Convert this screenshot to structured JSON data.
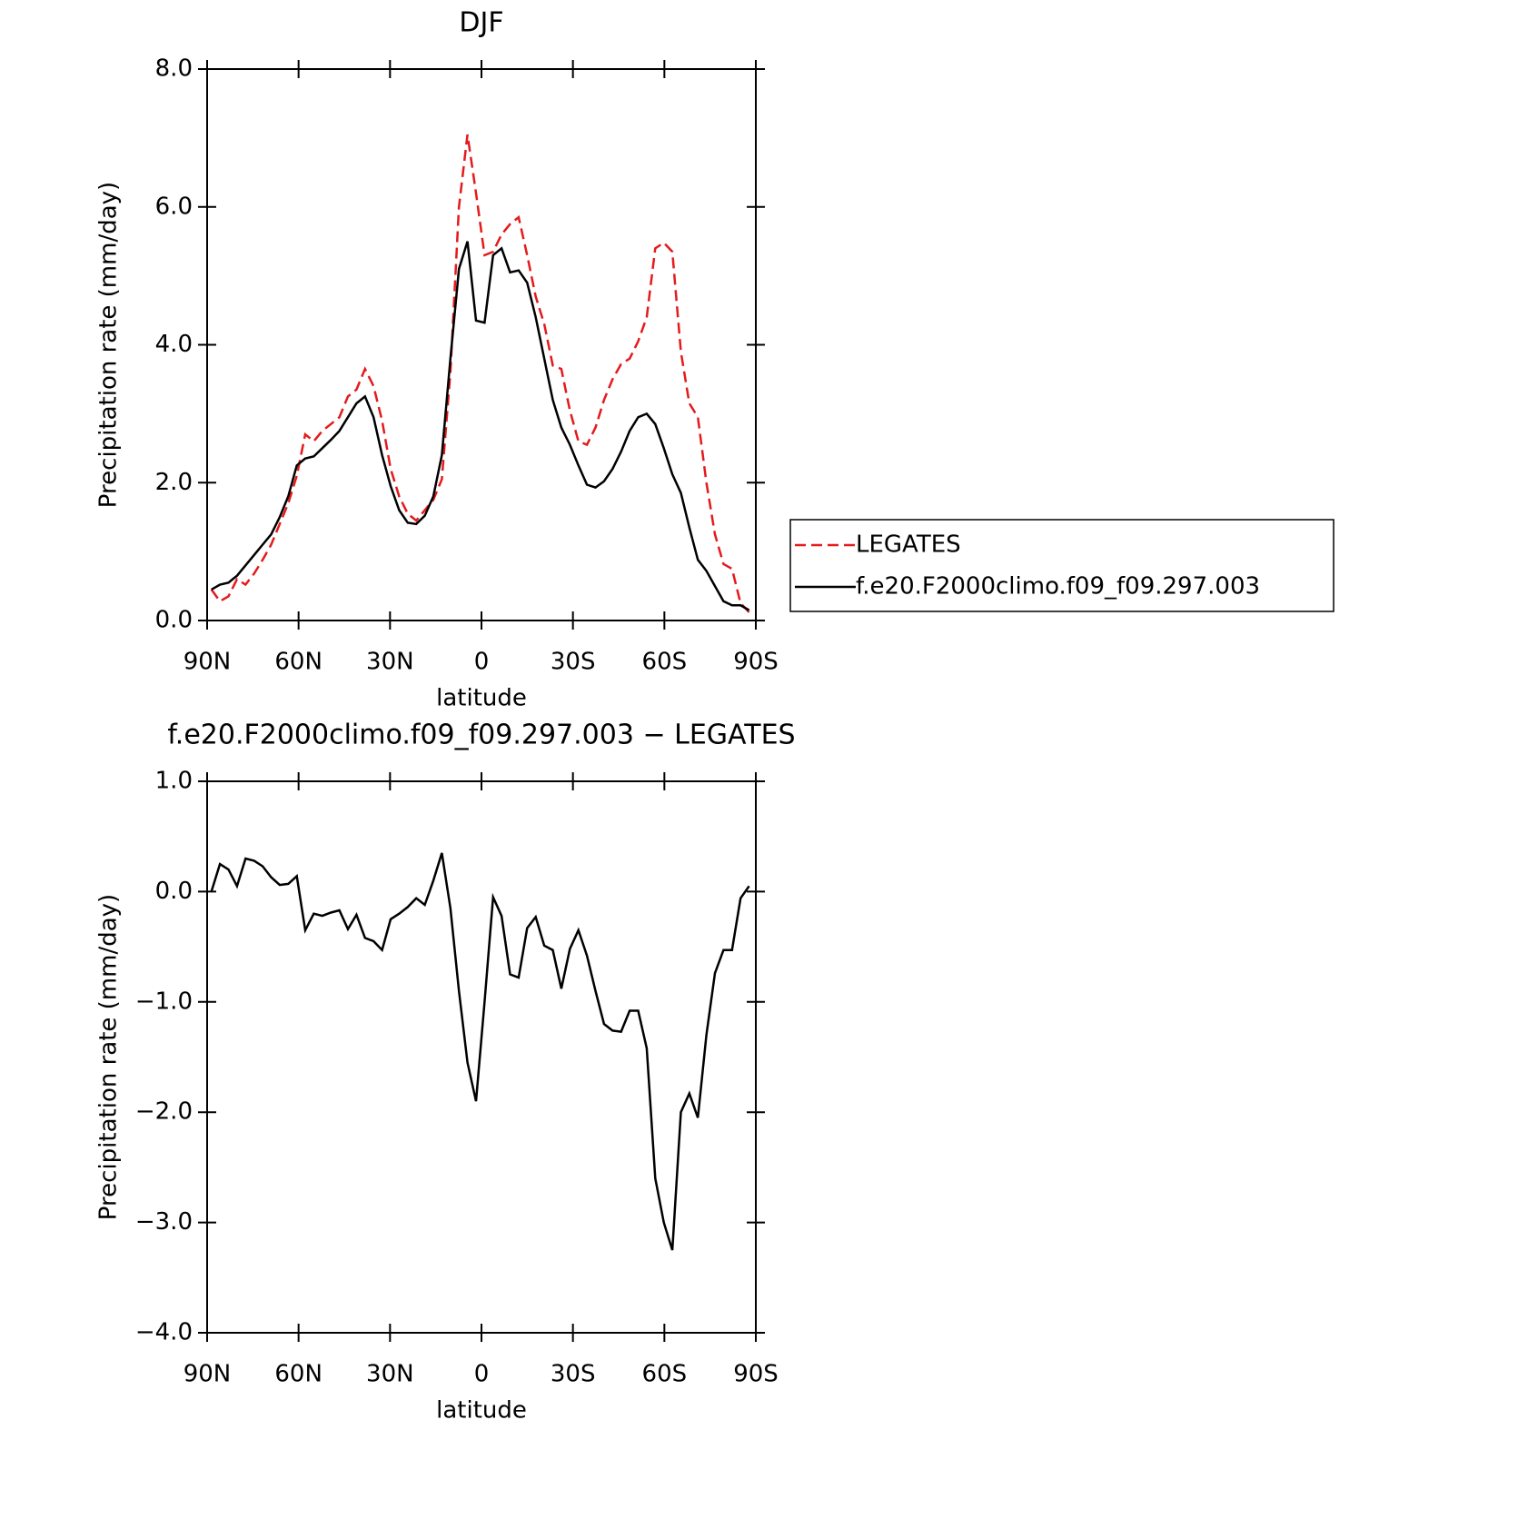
{
  "chart_data": [
    {
      "type": "line",
      "title": "DJF",
      "xlabel": "latitude",
      "ylabel": "Precipitation rate (mm/day)",
      "x": [
        88.6,
        85.8,
        83.0,
        80.2,
        77.4,
        74.6,
        71.8,
        69.0,
        66.2,
        63.4,
        60.6,
        57.8,
        55.0,
        52.2,
        49.4,
        46.6,
        43.8,
        41.0,
        38.2,
        35.4,
        32.6,
        29.8,
        27.0,
        24.2,
        21.4,
        18.6,
        15.8,
        13.0,
        10.2,
        7.4,
        4.6,
        1.8,
        -1.0,
        -3.8,
        -6.6,
        -9.4,
        -12.2,
        -15.0,
        -17.8,
        -20.6,
        -23.4,
        -26.2,
        -29.0,
        -31.8,
        -34.6,
        -37.4,
        -40.2,
        -43.0,
        -45.8,
        -48.6,
        -51.4,
        -54.2,
        -57.0,
        -59.8,
        -62.6,
        -65.4,
        -68.2,
        -71.0,
        -73.8,
        -76.6,
        -79.4,
        -82.2,
        -85.0,
        -87.8
      ],
      "series": [
        {
          "name": "LEGATES",
          "color": "#e41a1c",
          "line_style": "dashed",
          "values": [
            0.45,
            0.28,
            0.35,
            0.6,
            0.52,
            0.68,
            0.88,
            1.1,
            1.4,
            1.7,
            2.1,
            2.7,
            2.6,
            2.75,
            2.85,
            2.95,
            3.25,
            3.35,
            3.65,
            3.4,
            2.9,
            2.2,
            1.8,
            1.55,
            1.45,
            1.6,
            1.75,
            2.05,
            3.6,
            6.0,
            7.05,
            6.2,
            5.3,
            5.35,
            5.6,
            5.75,
            5.85,
            5.3,
            4.7,
            4.3,
            3.7,
            3.65,
            3.05,
            2.6,
            2.55,
            2.8,
            3.2,
            3.5,
            3.72,
            3.8,
            4.05,
            4.4,
            5.4,
            5.48,
            5.35,
            3.9,
            3.15,
            2.95,
            2.0,
            1.25,
            0.82,
            0.75,
            0.25,
            0.12
          ]
        },
        {
          "name": "f.e20.F2000climo.f09_f09.297.003",
          "color": "#000000",
          "line_style": "solid",
          "values": [
            0.45,
            0.52,
            0.55,
            0.65,
            0.8,
            0.95,
            1.1,
            1.25,
            1.5,
            1.8,
            2.25,
            2.35,
            2.38,
            2.5,
            2.62,
            2.75,
            2.95,
            3.15,
            3.25,
            2.95,
            2.4,
            1.95,
            1.6,
            1.42,
            1.4,
            1.52,
            1.8,
            2.4,
            3.8,
            5.1,
            5.5,
            4.35,
            4.32,
            5.3,
            5.4,
            5.05,
            5.08,
            4.9,
            4.4,
            3.8,
            3.2,
            2.8,
            2.55,
            2.25,
            1.97,
            1.93,
            2.02,
            2.2,
            2.45,
            2.75,
            2.95,
            3.0,
            2.85,
            2.5,
            2.12,
            1.85,
            1.35,
            0.88,
            0.72,
            0.5,
            0.28,
            0.22,
            0.22,
            0.15
          ]
        }
      ],
      "xlim": [
        90,
        -90
      ],
      "xticks": [
        {
          "value": 90,
          "label": "90N"
        },
        {
          "value": 60,
          "label": "60N"
        },
        {
          "value": 30,
          "label": "30N"
        },
        0,
        {
          "value": -30,
          "label": "30S"
        },
        {
          "value": -60,
          "label": "60S"
        },
        {
          "value": -90,
          "label": "90S"
        }
      ],
      "ylim": [
        0,
        8
      ],
      "yticks": [
        {
          "value": 0,
          "label": "0.0"
        },
        {
          "value": 2,
          "label": "2.0"
        },
        {
          "value": 4,
          "label": "4.0"
        },
        {
          "value": 6,
          "label": "6.0"
        },
        {
          "value": 8,
          "label": "8.0"
        }
      ],
      "legend": "right"
    },
    {
      "type": "line",
      "title": "f.e20.F2000climo.f09_f09.297.003 − LEGATES",
      "xlabel": "latitude",
      "ylabel": "Precipitation rate (mm/day)",
      "x": [
        88.6,
        85.8,
        83.0,
        80.2,
        77.4,
        74.6,
        71.8,
        69.0,
        66.2,
        63.4,
        60.6,
        57.8,
        55.0,
        52.2,
        49.4,
        46.6,
        43.8,
        41.0,
        38.2,
        35.4,
        32.6,
        29.8,
        27.0,
        24.2,
        21.4,
        18.6,
        15.8,
        13.0,
        10.2,
        7.4,
        4.6,
        1.8,
        -1.0,
        -3.8,
        -6.6,
        -9.4,
        -12.2,
        -15.0,
        -17.8,
        -20.6,
        -23.4,
        -26.2,
        -29.0,
        -31.8,
        -34.6,
        -37.4,
        -40.2,
        -43.0,
        -45.8,
        -48.6,
        -51.4,
        -54.2,
        -57.0,
        -59.8,
        -62.6,
        -65.4,
        -68.2,
        -71.0,
        -73.8,
        -76.6,
        -79.4,
        -82.2,
        -85.0,
        -87.8
      ],
      "values": [
        0.0,
        0.25,
        0.2,
        0.05,
        0.3,
        0.28,
        0.23,
        0.13,
        0.06,
        0.07,
        0.14,
        -0.35,
        -0.2,
        -0.22,
        -0.19,
        -0.17,
        -0.34,
        -0.21,
        -0.42,
        -0.45,
        -0.53,
        -0.25,
        -0.2,
        -0.14,
        -0.06,
        -0.12,
        0.1,
        0.35,
        -0.15,
        -0.9,
        -1.55,
        -1.9,
        -1.0,
        -0.05,
        -0.22,
        -0.75,
        -0.78,
        -0.33,
        -0.23,
        -0.49,
        -0.53,
        -0.88,
        -0.52,
        -0.35,
        -0.58,
        -0.9,
        -1.2,
        -1.26,
        -1.27,
        -1.08,
        -1.08,
        -1.42,
        -2.6,
        -3.0,
        -3.25,
        -2.0,
        -1.83,
        -2.05,
        -1.3,
        -0.74,
        -0.53,
        -0.53,
        -0.06,
        0.05
      ],
      "color": "#000000",
      "xlim": [
        90,
        -90
      ],
      "xticks": [
        {
          "value": 90,
          "label": "90N"
        },
        {
          "value": 60,
          "label": "60N"
        },
        {
          "value": 30,
          "label": "30N"
        },
        0,
        {
          "value": -30,
          "label": "30S"
        },
        {
          "value": -60,
          "label": "60S"
        },
        {
          "value": -90,
          "label": "90S"
        }
      ],
      "ylim": [
        -4,
        1
      ],
      "yticks": [
        {
          "value": -4,
          "label": "−4.0"
        },
        {
          "value": -3,
          "label": "−3.0"
        },
        {
          "value": -2,
          "label": "−2.0"
        },
        {
          "value": -1,
          "label": "−1.0"
        },
        {
          "value": 0,
          "label": "0.0"
        },
        {
          "value": 1,
          "label": "1.0"
        }
      ]
    }
  ]
}
